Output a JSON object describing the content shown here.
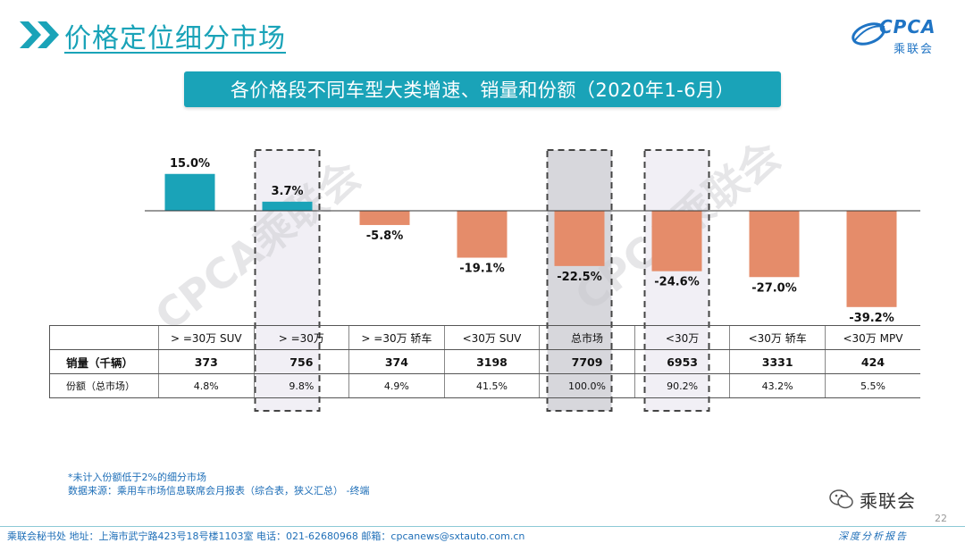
{
  "header": {
    "title": "价格定位细分市场",
    "logo_text_top": "CPCA",
    "logo_text_bottom": "乘联会"
  },
  "chart_title": "各价格段不同车型大类增速、销量和份额（2020年1-6月）",
  "colors": {
    "accent": "#1aa3b8",
    "positive_bar": "#1aa3b8",
    "negative_bar": "#e58c6a",
    "highlight_fill": "#e7e5ee",
    "total_fill": "#d0d0d6"
  },
  "chart_data": {
    "type": "bar",
    "title": "各价格段不同车型大类增速、销量和份额（2020年1-6月）",
    "categories": [
      ">=30万 SUV",
      ">=30万",
      ">=30万 轿车",
      "<30万 SUV",
      "总市场",
      "<30万",
      "<30万 轿车",
      "<30万 MPV"
    ],
    "series": [
      {
        "values": [
          15.0,
          3.7,
          -5.8,
          -19.1,
          -22.5,
          -24.6,
          -27.0,
          -39.2
        ]
      }
    ],
    "value_labels": [
      "15.0%",
      "3.7%",
      "-5.8%",
      "-19.1%",
      "-22.5%",
      "-24.6%",
      "-27.0%",
      "-39.2%"
    ],
    "highlighted_categories": [
      ">=30万",
      "总市场",
      "<30万"
    ],
    "grid": false,
    "legend": "none"
  },
  "table": {
    "headers": [
      "",
      "> =30万 SUV",
      "> =30万",
      "> =30万 轿车",
      "<30万 SUV",
      "总市场",
      "<30万",
      "<30万 轿车",
      "<30万 MPV"
    ],
    "rows": [
      {
        "label": "销量（千辆）",
        "values": [
          "373",
          "756",
          "374",
          "3198",
          "7709",
          "6953",
          "3331",
          "424"
        ]
      },
      {
        "label": "份额（总市场）",
        "values": [
          "4.8%",
          "9.8%",
          "4.9%",
          "41.5%",
          "100.0%",
          "90.2%",
          "43.2%",
          "5.5%"
        ]
      }
    ]
  },
  "footnotes": {
    "note": "*未计入份额低于2%的细分市场",
    "source": "数据来源：乘用车市场信息联席会月报表（综合表，狭义汇总）  -终端"
  },
  "watermark": "CPCA乘联会",
  "wechat_label": "乘联会",
  "page_number": "22",
  "footer": {
    "contact": "乘联会秘书处    地址：上海市武宁路423号18号楼1103室    电话：021-62680968    邮箱：cpcanews@sxtauto.com.cn",
    "slogan": "深度分析报告"
  }
}
